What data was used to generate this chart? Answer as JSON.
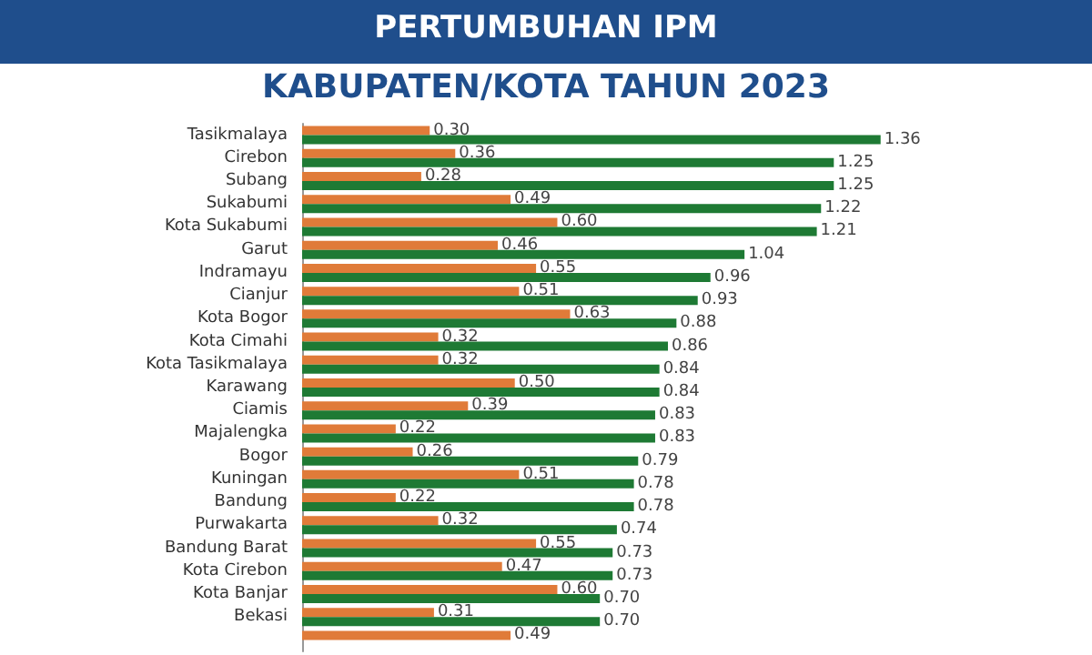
{
  "chart_data": {
    "type": "bar",
    "orientation": "horizontal",
    "title": "PERTUMBUHAN IPM",
    "subtitle": "KABUPATEN/KOTA TAHUN 2023",
    "categories": [
      "Tasikmalaya",
      "Cirebon",
      "Subang",
      "Sukabumi",
      "Kota Sukabumi",
      "Garut",
      "Indramayu",
      "Cianjur",
      "Kota Bogor",
      "Kota Cimahi",
      "Kota Tasikmalaya",
      "Karawang",
      "Ciamis",
      "Majalengka",
      "Bogor",
      "Kuningan",
      "Bandung",
      "Purwakarta",
      "Bandung Barat",
      "Kota Cirebon",
      "Kota Banjar",
      "Bekasi",
      null
    ],
    "series": [
      {
        "color": "#e07b39",
        "values": [
          0.3,
          0.36,
          0.28,
          0.49,
          0.6,
          0.46,
          0.55,
          0.51,
          0.63,
          0.32,
          0.32,
          0.5,
          0.39,
          0.22,
          0.26,
          0.51,
          0.22,
          0.32,
          0.55,
          0.47,
          0.6,
          0.31,
          0.49
        ],
        "value_labels": [
          "0.30",
          "0.36",
          "0.28",
          "0.49",
          "0.60",
          "0.46",
          "0.55",
          "0.51",
          "0.63",
          "0.32",
          "0.32",
          "0.50",
          "0.39",
          "0.22",
          "0.26",
          "0.51",
          "0.22",
          "0.32",
          "0.55",
          "0.47",
          "0.60",
          "0.31",
          "0.49"
        ]
      },
      {
        "color": "#1e7a34",
        "values": [
          1.36,
          1.25,
          1.25,
          1.22,
          1.21,
          1.04,
          0.96,
          0.93,
          0.88,
          0.86,
          0.84,
          0.84,
          0.83,
          0.83,
          0.79,
          0.78,
          0.78,
          0.74,
          0.73,
          0.73,
          0.7,
          0.7,
          null
        ],
        "value_labels": [
          "1.36",
          "1.25",
          "1.25",
          "1.22",
          "1.21",
          "1.04",
          "0.96",
          "0.93",
          "0.88",
          "0.86",
          "0.84",
          "0.84",
          "0.83",
          "0.83",
          "0.79",
          "0.78",
          "0.78",
          "0.74",
          "0.73",
          "0.73",
          "0.70",
          "0.70",
          null
        ]
      }
    ],
    "grid": false
  }
}
